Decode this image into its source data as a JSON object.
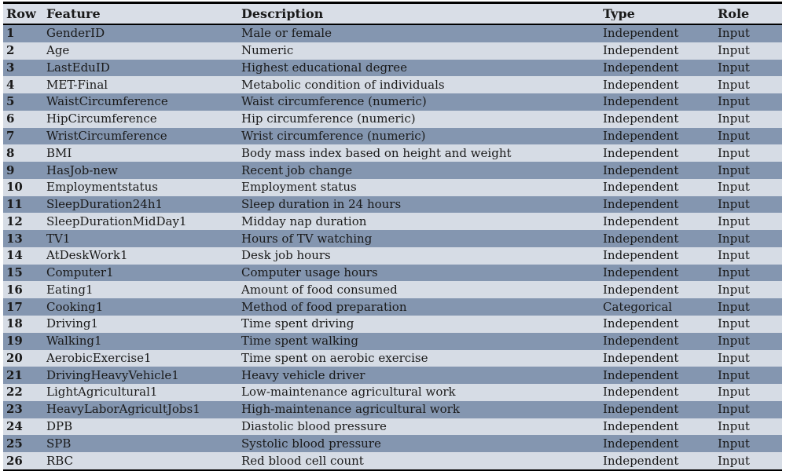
{
  "table": {
    "colors": {
      "header_bg": "#D9DEE7",
      "row_odd_bg": "#8496B0",
      "row_even_bg": "#D6DCE5",
      "border": "#000000",
      "text": "#1A1A1A"
    },
    "columns": [
      {
        "key": "row",
        "label": "Row"
      },
      {
        "key": "feature",
        "label": "Feature"
      },
      {
        "key": "description",
        "label": "Description"
      },
      {
        "key": "type",
        "label": "Type"
      },
      {
        "key": "role",
        "label": "Role"
      }
    ],
    "rows": [
      {
        "row": "1",
        "feature": "GenderID",
        "description": "Male or female",
        "type": "Independent",
        "role": "Input"
      },
      {
        "row": "2",
        "feature": "Age",
        "description": "Numeric",
        "type": "Independent",
        "role": "Input"
      },
      {
        "row": "3",
        "feature": "LastEduID",
        "description": "Highest educational degree",
        "type": "Independent",
        "role": "Input"
      },
      {
        "row": "4",
        "feature": "MET-Final",
        "description": "Metabolic condition of individuals",
        "type": "Independent",
        "role": "Input"
      },
      {
        "row": "5",
        "feature": "WaistCircumference",
        "description": "Waist circumference (numeric)",
        "type": "Independent",
        "role": "Input"
      },
      {
        "row": "6",
        "feature": "HipCircumference",
        "description": "Hip circumference (numeric)",
        "type": "Independent",
        "role": "Input"
      },
      {
        "row": "7",
        "feature": "WristCircumference",
        "description": "Wrist circumference (numeric)",
        "type": "Independent",
        "role": "Input"
      },
      {
        "row": "8",
        "feature": "BMI",
        "description": "Body mass index based on height and weight",
        "type": "Independent",
        "role": "Input"
      },
      {
        "row": "9",
        "feature": "HasJob-new",
        "description": "Recent job change",
        "type": "Independent",
        "role": "Input"
      },
      {
        "row": "10",
        "feature": "Employmentstatus",
        "description": "Employment status",
        "type": "Independent",
        "role": "Input"
      },
      {
        "row": "11",
        "feature": "SleepDuration24h1",
        "description": "Sleep duration in 24 hours",
        "type": "Independent",
        "role": "Input"
      },
      {
        "row": "12",
        "feature": "SleepDurationMidDay1",
        "description": "Midday nap duration",
        "type": "Independent",
        "role": "Input"
      },
      {
        "row": "13",
        "feature": "TV1",
        "description": "Hours of TV watching",
        "type": "Independent",
        "role": "Input"
      },
      {
        "row": "14",
        "feature": "AtDeskWork1",
        "description": "Desk job hours",
        "type": "Independent",
        "role": "Input"
      },
      {
        "row": "15",
        "feature": "Computer1",
        "description": "Computer usage hours",
        "type": "Independent",
        "role": "Input"
      },
      {
        "row": "16",
        "feature": "Eating1",
        "description": "Amount of food consumed",
        "type": "Independent",
        "role": "Input"
      },
      {
        "row": "17",
        "feature": "Cooking1",
        "description": "Method of food preparation",
        "type": "Categorical",
        "role": "Input"
      },
      {
        "row": "18",
        "feature": "Driving1",
        "description": "Time spent driving",
        "type": "Independent",
        "role": "Input"
      },
      {
        "row": "19",
        "feature": "Walking1",
        "description": "Time spent walking",
        "type": "Independent",
        "role": "Input"
      },
      {
        "row": "20",
        "feature": "AerobicExercise1",
        "description": "Time spent on aerobic exercise",
        "type": "Independent",
        "role": "Input"
      },
      {
        "row": "21",
        "feature": "DrivingHeavyVehicle1",
        "description": "Heavy vehicle driver",
        "type": "Independent",
        "role": "Input"
      },
      {
        "row": "22",
        "feature": "LightAgricultural1",
        "description": "Low-maintenance agricultural work",
        "type": "Independent",
        "role": "Input"
      },
      {
        "row": "23",
        "feature": "HeavyLaborAgricultJobs1",
        "description": "High-maintenance agricultural work",
        "type": "Independent",
        "role": "Input"
      },
      {
        "row": "24",
        "feature": "DPB",
        "description": "Diastolic blood pressure",
        "type": "Independent",
        "role": "Input"
      },
      {
        "row": "25",
        "feature": "SPB",
        "description": "Systolic blood pressure",
        "type": "Independent",
        "role": "Input"
      },
      {
        "row": "26",
        "feature": "RBC",
        "description": "Red blood cell count",
        "type": "Independent",
        "role": "Input"
      }
    ]
  }
}
